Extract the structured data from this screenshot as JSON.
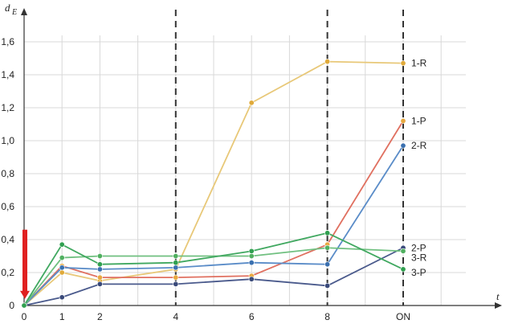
{
  "chart_data": {
    "type": "line",
    "ylabel": "d",
    "ylabel_sub": "E",
    "xlabel": "t",
    "categories": [
      "0",
      "1",
      "2",
      "4",
      "6",
      "8",
      "ON"
    ],
    "x_positions": [
      0,
      1,
      2,
      4,
      6,
      8,
      10
    ],
    "xlim": [
      0,
      12.5
    ],
    "ylim": [
      0,
      1.6
    ],
    "yticks": [
      "0",
      "0,2",
      "0,4",
      "0,6",
      "0,8",
      "1,0",
      "1,2",
      "1,4",
      "1,6"
    ],
    "ytick_values": [
      0,
      0.2,
      0.4,
      0.6,
      0.8,
      1.0,
      1.2,
      1.4,
      1.6
    ],
    "grid": true,
    "dashed_vlines": [
      4,
      8,
      10
    ],
    "arrow": {
      "color": "#e02020",
      "from": 0.46,
      "to": 0.06,
      "x": 0
    },
    "series": [
      {
        "name": "1-R",
        "color": "#e8c878",
        "marker": "#e0aa3a",
        "values": [
          0,
          0.2,
          0.15,
          0.22,
          1.23,
          1.48,
          1.47
        ]
      },
      {
        "name": "1-P",
        "color": "#e07060",
        "marker": "#e8a840",
        "values": [
          0,
          0.24,
          0.17,
          0.17,
          0.18,
          0.37,
          1.12
        ]
      },
      {
        "name": "2-R",
        "color": "#5a8cc8",
        "marker": "#3a70b0",
        "values": [
          0,
          0.23,
          0.22,
          0.23,
          0.26,
          0.25,
          0.97
        ]
      },
      {
        "name": "2-P",
        "color": "#4a5a8c",
        "marker": "#3a4a7a",
        "values": [
          0,
          0.05,
          0.13,
          0.13,
          0.16,
          0.12,
          0.35
        ]
      },
      {
        "name": "3-R",
        "color": "#70c080",
        "marker": "#50b060",
        "values": [
          0,
          0.29,
          0.3,
          0.3,
          0.3,
          0.35,
          0.33
        ]
      },
      {
        "name": "3-P",
        "color": "#40a860",
        "marker": "#30a050",
        "values": [
          0,
          0.37,
          0.25,
          0.26,
          0.33,
          0.44,
          0.22
        ]
      }
    ],
    "label_positions": {
      "1-R": 1.47,
      "1-P": 1.12,
      "2-R": 0.97,
      "2-P": 0.35,
      "3-R": 0.29,
      "3-P": 0.2
    }
  }
}
